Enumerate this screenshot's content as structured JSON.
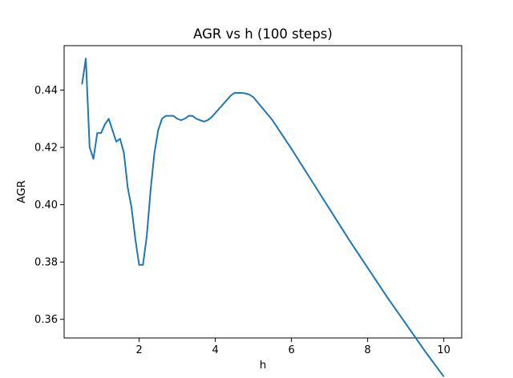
{
  "chart_data": {
    "type": "line",
    "title": "AGR vs h (100 steps)",
    "xlabel": "h",
    "ylabel": "AGR",
    "xlim": [
      0.03,
      10.47
    ],
    "ylim": [
      0.3535,
      0.4555
    ],
    "xticks": [
      2,
      4,
      6,
      8,
      10
    ],
    "yticks": [
      0.36,
      0.38,
      0.4,
      0.42,
      0.44
    ],
    "xtick_labels": [
      "2",
      "4",
      "6",
      "8",
      "10"
    ],
    "ytick_labels": [
      "0.36",
      "0.38",
      "0.40",
      "0.42",
      "0.44"
    ],
    "grid": false,
    "legend": "none",
    "series": [
      {
        "color": "#1f77b4",
        "x": [
          0.5,
          0.6,
          0.7,
          0.8,
          0.9,
          1.0,
          1.1,
          1.2,
          1.3,
          1.4,
          1.5,
          1.6,
          1.7,
          1.8,
          1.9,
          2.0,
          2.1,
          2.2,
          2.3,
          2.4,
          2.5,
          2.6,
          2.7,
          2.8,
          2.9,
          3.0,
          3.1,
          3.2,
          3.3,
          3.4,
          3.5,
          3.6,
          3.7,
          3.8,
          3.9,
          4.0,
          4.2,
          4.4,
          4.5,
          4.6,
          4.7,
          4.8,
          4.9,
          5.0,
          5.5,
          6.0,
          6.5,
          7.0,
          7.5,
          8.0,
          8.5,
          9.0,
          9.5,
          10.0
        ],
        "y": [
          0.442,
          0.451,
          0.42,
          0.416,
          0.425,
          0.425,
          0.428,
          0.43,
          0.426,
          0.422,
          0.423,
          0.418,
          0.406,
          0.399,
          0.388,
          0.379,
          0.379,
          0.389,
          0.405,
          0.418,
          0.426,
          0.43,
          0.431,
          0.431,
          0.431,
          0.43,
          0.4295,
          0.43,
          0.431,
          0.431,
          0.43,
          0.4295,
          0.429,
          0.4295,
          0.4305,
          0.432,
          0.435,
          0.438,
          0.439,
          0.439,
          0.439,
          0.4388,
          0.4384,
          0.4375,
          0.4295,
          0.4195,
          0.409,
          0.3985,
          0.388,
          0.378,
          0.368,
          0.3585,
          0.349,
          0.34
        ]
      }
    ]
  }
}
